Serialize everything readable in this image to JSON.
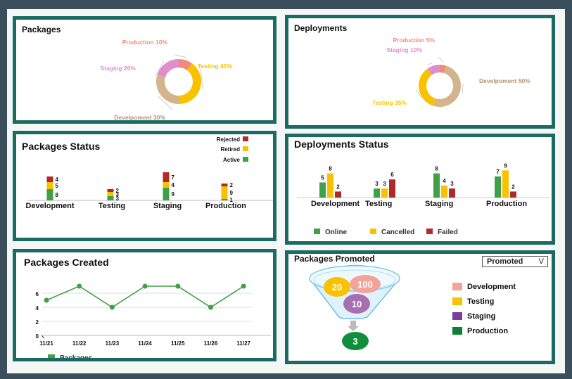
{
  "packages_pie": {
    "title": "Packages",
    "chart_data": {
      "type": "pie",
      "labels": [
        "Production 10%",
        "Testing 40%",
        "Develpoment 30%",
        "Staging 20%"
      ],
      "values": [
        10,
        40,
        30,
        20
      ],
      "colors": [
        "#f28a7a",
        "#f8c200",
        "#d4b48c",
        "#e08dcc"
      ]
    }
  },
  "deployments_pie": {
    "title": "Deployments",
    "chart_data": {
      "type": "pie",
      "labels": [
        "Production 5%",
        "Develpoment 50%",
        "Testing 35%",
        "Staging 10%"
      ],
      "values": [
        5,
        50,
        35,
        10
      ],
      "colors": [
        "#f28a7a",
        "#d4b48c",
        "#f8c200",
        "#e08dcc"
      ]
    }
  },
  "packages_status": {
    "title": "Packages Status",
    "chart_data": {
      "type": "bar",
      "stacked": true,
      "categories": [
        "Development",
        "Testing",
        "Staging",
        "Production"
      ],
      "series": [
        {
          "name": "Active",
          "values": [
            8,
            3,
            9,
            1
          ],
          "color": "#3fa046"
        },
        {
          "name": "Retired",
          "values": [
            5,
            3,
            4,
            9
          ],
          "color": "#f8c200"
        },
        {
          "name": "Rejected",
          "values": [
            4,
            2,
            7,
            2
          ],
          "color": "#b02a2a"
        }
      ],
      "labels": [
        [
          "8",
          "5",
          "4"
        ],
        [
          "3",
          "3",
          "2"
        ],
        [
          "9",
          "4",
          "7"
        ],
        [
          "1",
          "9",
          "2"
        ]
      ]
    }
  },
  "deployments_status": {
    "title": "Deployments Status",
    "chart_data": {
      "type": "bar",
      "categories": [
        "Development",
        "Testing",
        "Staging",
        "Production"
      ],
      "series": [
        {
          "name": "Online",
          "values": [
            5,
            3,
            8,
            7
          ],
          "color": "#3fa046"
        },
        {
          "name": "Cancelled",
          "values": [
            8,
            3,
            4,
            9
          ],
          "color": "#f8c200"
        },
        {
          "name": "Failed",
          "values": [
            2,
            6,
            3,
            2
          ],
          "color": "#b02a2a"
        }
      ]
    }
  },
  "packages_created": {
    "title": "Packages Created",
    "chart_data": {
      "type": "line",
      "x": [
        "11/21",
        "11/22",
        "11/23",
        "11/24",
        "11/25",
        "11/26",
        "11/27"
      ],
      "series": [
        {
          "name": "Packages",
          "values": [
            5,
            7,
            4,
            7,
            7,
            4,
            7
          ],
          "color": "#3fa046"
        }
      ],
      "yticks": [
        "0",
        "2",
        "4",
        "6"
      ],
      "ylim": [
        0,
        7
      ]
    }
  },
  "packages_promoted": {
    "title": "Packages Promoted",
    "dropdown_value": "Promoted",
    "dropdown_icon": "chevron-down-icon",
    "bubbles": [
      {
        "label": "100",
        "color": "#f2a49a"
      },
      {
        "label": "20",
        "color": "#f8c200"
      },
      {
        "label": "10",
        "color": "#a86fb0"
      },
      {
        "label": "3",
        "color": "#0f8f3a"
      }
    ],
    "legend": [
      {
        "label": "Development",
        "color": "#f2a49a"
      },
      {
        "label": "Testing",
        "color": "#f8c200"
      },
      {
        "label": "Staging",
        "color": "#7a3f9e"
      },
      {
        "label": "Production",
        "color": "#0f7f33"
      }
    ]
  }
}
